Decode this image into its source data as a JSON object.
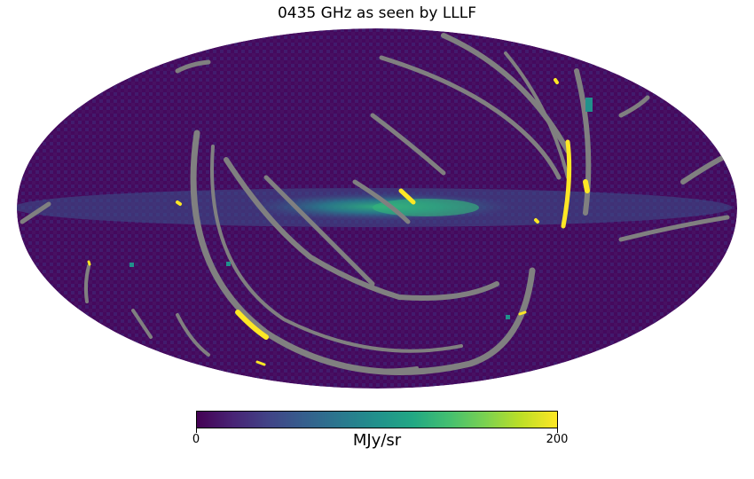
{
  "title": "0435 GHz as seen by LLLF",
  "colorbar": {
    "min_label": "0",
    "max_label": "200",
    "unit": "MJy/sr",
    "vmin": 0,
    "vmax": 200,
    "colormap": "viridis"
  },
  "map": {
    "projection": "mollweide",
    "background_color": "#46085c",
    "masked_color": "#808080",
    "saturated_color": "#fde725",
    "band_color": "#1fa187"
  }
}
